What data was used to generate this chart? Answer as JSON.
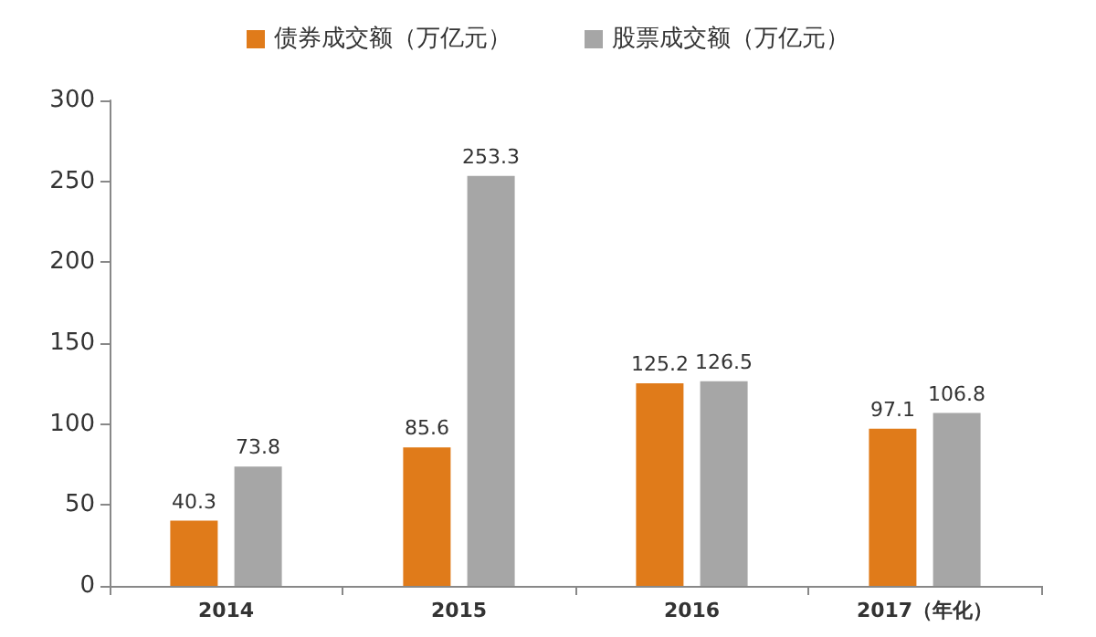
{
  "chart_data": {
    "type": "bar",
    "categories": [
      "2014",
      "2015",
      "2016",
      "2017（年化）"
    ],
    "series": [
      {
        "name": "债券成交额（万亿元）",
        "color": "#e07b1a",
        "values": [
          40.3,
          85.6,
          125.2,
          97.1
        ]
      },
      {
        "name": "股票成交额（万亿元）",
        "color": "#a6a6a6",
        "values": [
          73.8,
          253.3,
          126.5,
          106.8
        ]
      }
    ],
    "ylim": [
      0,
      300
    ],
    "yticks": [
      0,
      50,
      100,
      150,
      200,
      250,
      300
    ],
    "grid": false,
    "legend": "top",
    "data_labels": true
  }
}
